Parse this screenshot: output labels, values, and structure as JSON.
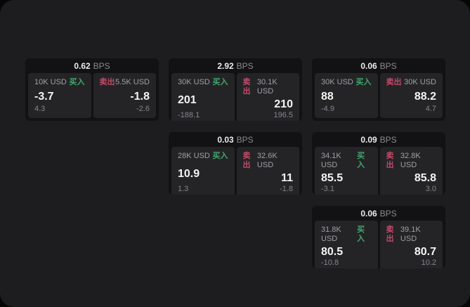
{
  "labels": {
    "bps_unit": "BPS",
    "buy": "买入",
    "sell": "卖出"
  },
  "colors": {
    "buy_green": "#41a86d",
    "sell_red": "#c34a68",
    "surface": "#1d1d1f",
    "card_bg": "#121214",
    "panel_bg": "#242427"
  },
  "cards": [
    {
      "col": 1,
      "row": 1,
      "bps": "0.62",
      "buy": {
        "amount": "10K USD",
        "price": "-3.7",
        "delta": "4.3"
      },
      "sell": {
        "amount": "5.5K USD",
        "price": "-1.8",
        "delta": "-2.6"
      }
    },
    {
      "col": 2,
      "row": 1,
      "bps": "2.92",
      "buy": {
        "amount": "30K USD",
        "price": "201",
        "delta": "-188.1"
      },
      "sell": {
        "amount": "30.1K USD",
        "price": "210",
        "delta": "196.5"
      }
    },
    {
      "col": 3,
      "row": 1,
      "bps": "0.06",
      "buy": {
        "amount": "30K USD",
        "price": "88",
        "delta": "-4.9"
      },
      "sell": {
        "amount": "30K USD",
        "price": "88.2",
        "delta": "4.7"
      }
    },
    {
      "col": 2,
      "row": 2,
      "bps": "0.03",
      "buy": {
        "amount": "28K USD",
        "price": "10.9",
        "delta": "1.3"
      },
      "sell": {
        "amount": "32.6K USD",
        "price": "11",
        "delta": "-1.8"
      }
    },
    {
      "col": 3,
      "row": 2,
      "bps": "0.09",
      "buy": {
        "amount": "34.1K USD",
        "price": "85.5",
        "delta": "-3.1"
      },
      "sell": {
        "amount": "32.8K USD",
        "price": "85.8",
        "delta": "3.0"
      }
    },
    {
      "col": 3,
      "row": 3,
      "bps": "0.06",
      "buy": {
        "amount": "31.8K USD",
        "price": "80.5",
        "delta": "-10.8"
      },
      "sell": {
        "amount": "39.1K USD",
        "price": "80.7",
        "delta": "10.2"
      }
    }
  ]
}
